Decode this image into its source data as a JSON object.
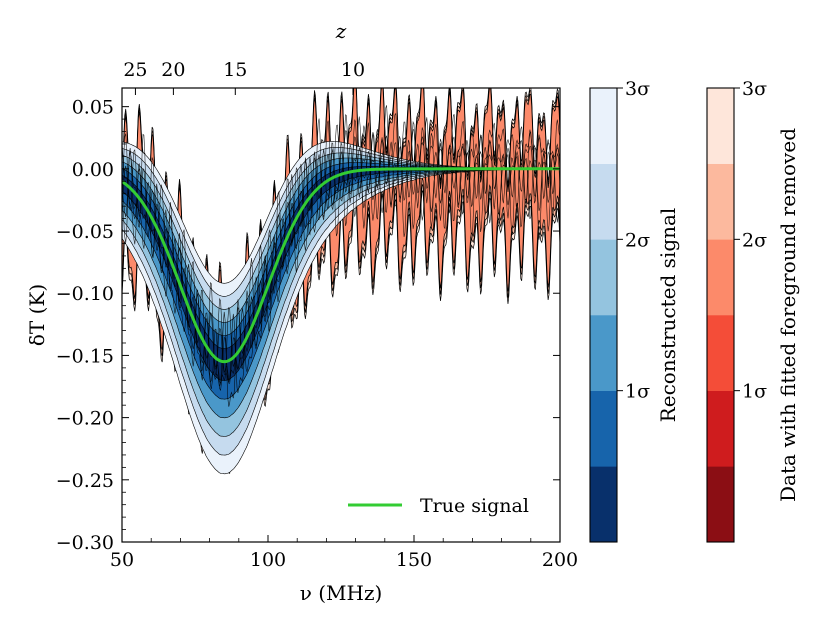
{
  "chart_data": {
    "type": "area",
    "x_axis": {
      "label": "ν (MHz)",
      "range": [
        50,
        200
      ],
      "ticks": [
        50,
        100,
        150,
        200
      ]
    },
    "y_axis": {
      "label": "δT (K)",
      "range": [
        -0.3,
        0.065
      ],
      "ticks": [
        0.05,
        0.0,
        -0.05,
        -0.1,
        -0.15,
        -0.2,
        -0.25,
        -0.3
      ],
      "tick_labels": [
        "0.05",
        "0.00",
        "−0.05",
        "−0.10",
        "−0.15",
        "−0.20",
        "−0.25",
        "−0.30"
      ]
    },
    "top_axis": {
      "label": "z",
      "ticks": [
        {
          "label": "25",
          "nu": 54.6
        },
        {
          "label": "20",
          "nu": 67.6
        },
        {
          "label": "15",
          "nu": 88.8
        },
        {
          "label": "10",
          "nu": 129.1
        }
      ]
    },
    "true_signal": {
      "name": "True signal",
      "color": "#33cc33",
      "shape": "gaussian",
      "center_mhz": 85,
      "amplitude_k": -0.155,
      "sigma_mhz": 15,
      "x": [
        50,
        55,
        60,
        65,
        70,
        75,
        80,
        85,
        90,
        95,
        100,
        105,
        110,
        115,
        120,
        125,
        130,
        140,
        150,
        160,
        170,
        180,
        190,
        200
      ],
      "y": [
        -0.0101,
        -0.0209,
        -0.0386,
        -0.064,
        -0.094,
        -0.124,
        -0.1473,
        -0.155,
        -0.1473,
        -0.124,
        -0.094,
        -0.064,
        -0.0386,
        -0.0209,
        -0.0101,
        -0.0044,
        -0.0017,
        -0.0002,
        0.0,
        0.0,
        0.0,
        0.0,
        0.0,
        0.0
      ]
    },
    "reconstructed_signal_spread_k": [
      0.015,
      0.03,
      0.045,
      0.06,
      0.075,
      0.09
    ],
    "data_spread_k": [
      0.06,
      0.055,
      0.05,
      0.045,
      0.04,
      0.035
    ],
    "data_fluctuation_amplitude_k": 0.045,
    "colorbars": [
      {
        "label": "Reconstructed signal",
        "tick_labels": [
          "1σ",
          "2σ",
          "3σ"
        ],
        "colors": [
          "#08306b",
          "#1764ab",
          "#4a98c9",
          "#94c4df",
          "#c6dbef",
          "#eaf2fb"
        ]
      },
      {
        "label": "Data with fitted foreground removed",
        "tick_labels": [
          "1σ",
          "2σ",
          "3σ"
        ],
        "colors": [
          "#8b0e14",
          "#cf1c1e",
          "#f44d38",
          "#fc8a6a",
          "#fcb99e",
          "#fee6da"
        ]
      }
    ],
    "legend": {
      "entry": "True signal",
      "placement": "lower-right"
    }
  }
}
